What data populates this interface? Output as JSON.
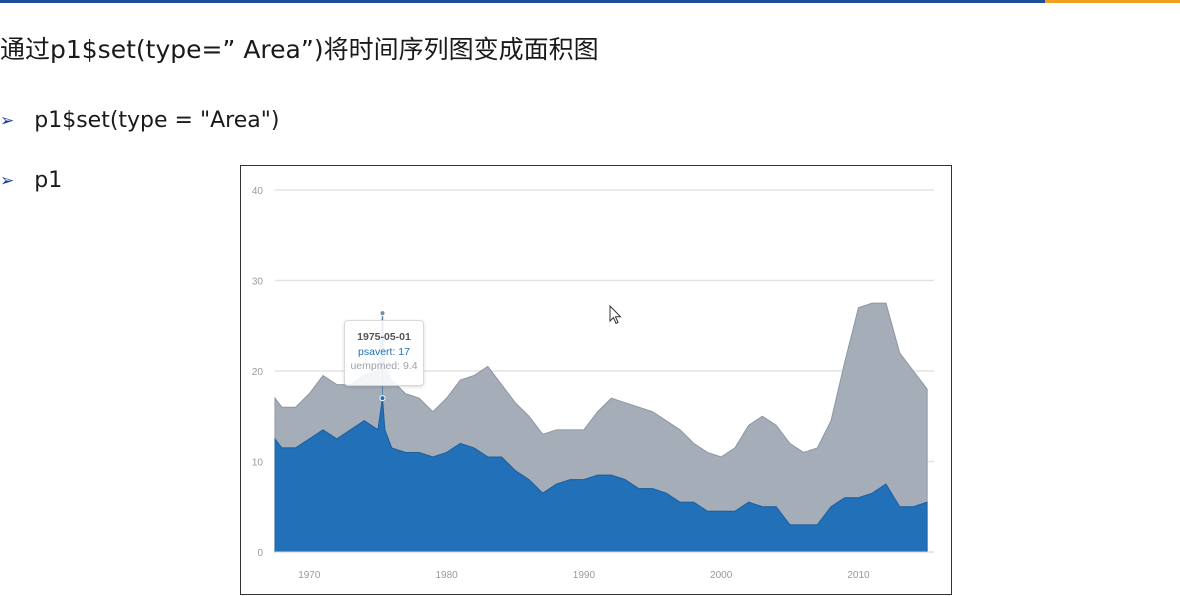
{
  "slide": {
    "title": "通过p1$set(type=” Area”)将时间序列图变成面积图",
    "bullets": [
      {
        "icon": "arrow-bullet-icon",
        "text": "p1$set(type = \"Area\")"
      },
      {
        "icon": "arrow-bullet-icon",
        "text": "p1"
      }
    ],
    "colors": {
      "top_bar": "#1f4e99",
      "top_accent": "#f0a020"
    }
  },
  "tooltip": {
    "date": "1975-05-01",
    "line1": "psavert: 17",
    "line2": "uempmed: 9.4"
  },
  "chart_data": {
    "type": "area",
    "stacked": true,
    "title": "",
    "xlabel": "",
    "ylabel": "",
    "ylim": [
      0,
      40
    ],
    "yticks": [
      "0",
      "10",
      "20",
      "30",
      "40"
    ],
    "xticks": [
      "1970",
      "1980",
      "1990",
      "2000",
      "2010"
    ],
    "grid": true,
    "x": [
      1967.5,
      1968,
      1969,
      1970,
      1971,
      1972,
      1973,
      1974,
      1975,
      1975.33,
      1975.5,
      1976,
      1977,
      1978,
      1979,
      1980,
      1981,
      1982,
      1983,
      1984,
      1985,
      1986,
      1987,
      1988,
      1989,
      1990,
      1991,
      1992,
      1993,
      1994,
      1995,
      1996,
      1997,
      1998,
      1999,
      2000,
      2001,
      2002,
      2003,
      2004,
      2005,
      2006,
      2007,
      2008,
      2009,
      2010,
      2011,
      2012,
      2013,
      2014,
      2015
    ],
    "series": [
      {
        "name": "psavert",
        "color": "#2270b8",
        "values": [
          12.5,
          11.5,
          11.5,
          12.5,
          13.5,
          12.5,
          13.5,
          14.5,
          13.5,
          17,
          13.5,
          11.5,
          11,
          11,
          10.5,
          11,
          12,
          11.5,
          10.5,
          10.5,
          9,
          8,
          6.5,
          7.5,
          8,
          8,
          8.5,
          8.5,
          8,
          7,
          7,
          6.5,
          5.5,
          5.5,
          4.5,
          4.5,
          4.5,
          5.5,
          5,
          5,
          3,
          3,
          3,
          5,
          6,
          6,
          6.5,
          7.5,
          5,
          5,
          5.5
        ]
      },
      {
        "name": "uempmed",
        "color": "#a5adb8",
        "values": [
          4.5,
          4.5,
          4.5,
          5,
          6,
          6,
          5,
          5,
          6.5,
          9.4,
          7,
          7.5,
          6.5,
          6,
          5,
          6,
          7,
          8,
          10,
          8,
          7.5,
          7,
          6.5,
          6,
          5.5,
          5.5,
          7,
          8.5,
          8.5,
          9,
          8.5,
          8,
          8,
          6.5,
          6.5,
          6,
          7,
          8.5,
          10,
          9,
          9,
          8,
          8.5,
          9.5,
          15,
          21,
          21,
          20,
          17,
          15,
          12.5
        ]
      }
    ]
  }
}
